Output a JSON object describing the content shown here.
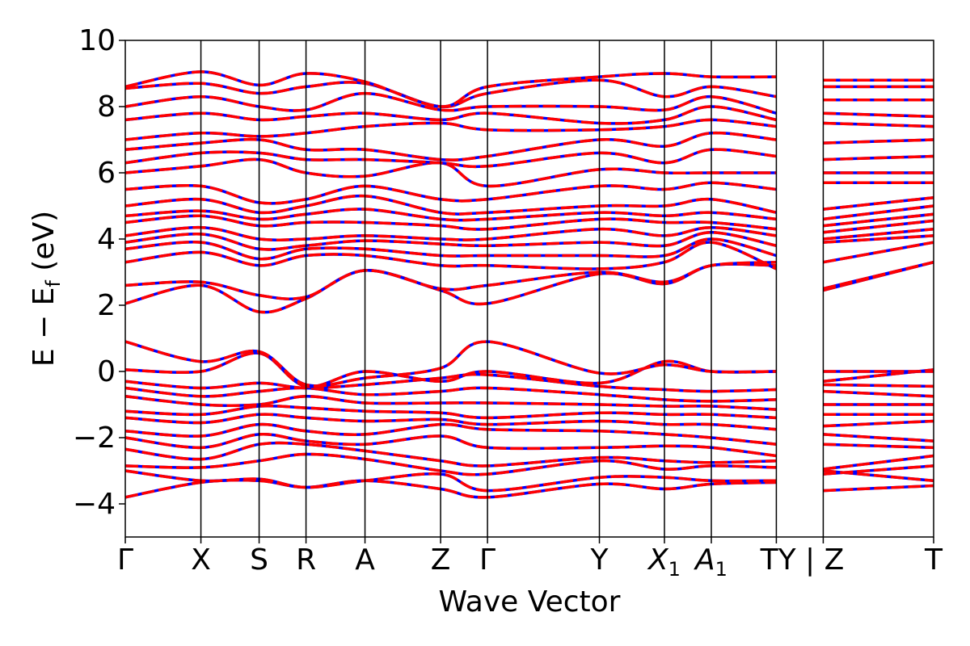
{
  "chart_data": {
    "type": "line",
    "xlabel": "Wave Vector",
    "ylabel": "E − E",
    "ylabel_sub": "f",
    "ylabel_unit": " (eV)",
    "ylim": [
      -5,
      10
    ],
    "yticks": [
      {
        "value": -4,
        "label": "−4"
      },
      {
        "value": -2,
        "label": "−2"
      },
      {
        "value": 0,
        "label": "0"
      },
      {
        "value": 2,
        "label": "2"
      },
      {
        "value": 4,
        "label": "4"
      },
      {
        "value": 6,
        "label": "6"
      },
      {
        "value": 8,
        "label": "8"
      },
      {
        "value": 10,
        "label": "10"
      }
    ],
    "kpoints": [
      {
        "pos": 0,
        "label": "Γ"
      },
      {
        "pos": 1,
        "label": "X"
      },
      {
        "pos": 1.77,
        "label": "S"
      },
      {
        "pos": 2.39,
        "label": "R"
      },
      {
        "pos": 3.17,
        "label": "A"
      },
      {
        "pos": 4.17,
        "label": "Z"
      },
      {
        "pos": 4.79,
        "label": "Γ"
      },
      {
        "pos": 6.27,
        "label": "Y"
      },
      {
        "pos": 7.13,
        "label": "X",
        "sub": "1"
      },
      {
        "pos": 7.75,
        "label": "A",
        "sub": "1"
      },
      {
        "pos": 8.61,
        "label": "TY | Z"
      },
      {
        "pos": 9.23,
        "label": ""
      },
      {
        "pos": 10.69,
        "label": "T"
      }
    ],
    "segment_break": 9.23,
    "series_colors": {
      "solid": "#ff0000",
      "dashed": "#0000ff"
    },
    "bands": [
      [
        -3.8,
        -3.35,
        -3.3,
        -3.5,
        -3.3,
        -3.55,
        -3.8,
        -3.4,
        -3.55,
        -3.4,
        -3.35,
        -3.6,
        -3.45
      ],
      [
        -3.0,
        -3.3,
        -3.25,
        -3.5,
        -3.3,
        -3.1,
        -3.6,
        -3.2,
        -3.2,
        -3.3,
        -3.3,
        -3.0,
        -3.3
      ],
      [
        -2.85,
        -2.9,
        -2.7,
        -2.5,
        -2.65,
        -3.0,
        -3.1,
        -2.7,
        -2.95,
        -2.85,
        -2.9,
        -3.1,
        -2.85
      ],
      [
        -2.35,
        -2.65,
        -2.2,
        -2.2,
        -2.4,
        -2.7,
        -2.85,
        -2.6,
        -2.7,
        -2.75,
        -2.7,
        -2.95,
        -2.55
      ],
      [
        -2.0,
        -2.3,
        -1.9,
        -2.1,
        -2.2,
        -1.95,
        -2.3,
        -2.3,
        -2.25,
        -2.3,
        -2.55,
        -2.2,
        -2.3
      ],
      [
        -1.8,
        -1.95,
        -1.6,
        -1.8,
        -1.9,
        -1.6,
        -1.75,
        -1.8,
        -1.9,
        -2.0,
        -2.2,
        -1.9,
        -2.1
      ],
      [
        -1.4,
        -1.55,
        -1.3,
        -1.4,
        -1.5,
        -1.45,
        -1.6,
        -1.5,
        -1.6,
        -1.6,
        -1.75,
        -1.65,
        -1.5
      ],
      [
        -1.2,
        -1.3,
        -1.05,
        -1.1,
        -1.2,
        -1.25,
        -1.4,
        -1.25,
        -1.3,
        -1.3,
        -1.4,
        -1.3,
        -1.3
      ],
      [
        -0.75,
        -1.0,
        -1.0,
        -0.75,
        -0.95,
        -0.95,
        -0.95,
        -1.0,
        -1.05,
        -1.05,
        -1.15,
        -1.0,
        -1.0
      ],
      [
        -0.5,
        -0.75,
        -0.6,
        -0.5,
        -0.7,
        -0.6,
        -0.5,
        -0.7,
        -0.85,
        -0.9,
        -0.85,
        -0.6,
        -0.75
      ],
      [
        -0.3,
        -0.5,
        -0.35,
        -0.5,
        -0.4,
        -0.2,
        -0.1,
        -0.45,
        -0.55,
        -0.6,
        -0.55,
        -0.4,
        -0.45
      ],
      [
        0.05,
        0.0,
        0.55,
        -0.45,
        0.0,
        -0.3,
        0.0,
        -0.35,
        0.3,
        0.0,
        0.0,
        -0.3,
        0.05
      ],
      [
        0.9,
        0.3,
        0.6,
        -0.4,
        -0.2,
        0.1,
        0.9,
        -0.05,
        0.2,
        0.0,
        0.0,
        0.0,
        0.0
      ],
      [
        2.05,
        2.6,
        1.8,
        2.2,
        3.05,
        2.45,
        2.05,
        2.95,
        2.65,
        3.2,
        3.2,
        2.45,
        3.3
      ],
      [
        2.6,
        2.7,
        2.3,
        2.25,
        3.05,
        2.5,
        2.6,
        3.0,
        2.7,
        3.2,
        3.3,
        2.5,
        3.3
      ],
      [
        3.3,
        3.6,
        3.2,
        3.5,
        3.5,
        3.2,
        3.2,
        3.1,
        3.3,
        3.9,
        3.1,
        3.3,
        3.9
      ],
      [
        3.7,
        3.9,
        3.4,
        3.7,
        3.7,
        3.5,
        3.5,
        3.5,
        3.5,
        4.0,
        3.5,
        3.9,
        4.1
      ],
      [
        3.9,
        4.15,
        3.7,
        3.8,
        3.95,
        3.85,
        3.8,
        3.9,
        3.8,
        4.2,
        3.8,
        4.0,
        4.3
      ],
      [
        4.1,
        4.35,
        4.0,
        4.0,
        4.1,
        4.0,
        4.0,
        4.3,
        4.1,
        4.35,
        4.1,
        4.2,
        4.55
      ],
      [
        4.5,
        4.7,
        4.4,
        4.5,
        4.5,
        4.4,
        4.3,
        4.6,
        4.5,
        4.5,
        4.3,
        4.4,
        4.75
      ],
      [
        4.7,
        4.85,
        4.6,
        4.75,
        4.9,
        4.6,
        4.6,
        4.8,
        4.7,
        4.8,
        4.6,
        4.6,
        5.0
      ],
      [
        5.0,
        5.2,
        4.8,
        5.0,
        5.3,
        4.8,
        4.8,
        5.0,
        5.0,
        5.2,
        4.8,
        4.9,
        5.25
      ],
      [
        5.5,
        5.6,
        5.1,
        5.2,
        5.6,
        5.2,
        5.2,
        5.6,
        5.5,
        5.7,
        5.5,
        5.7,
        5.7
      ],
      [
        6.0,
        6.2,
        6.4,
        6.0,
        5.9,
        6.3,
        5.6,
        6.1,
        6.0,
        6.0,
        6.0,
        6.0,
        6.0
      ],
      [
        6.3,
        6.6,
        6.6,
        6.4,
        6.4,
        6.3,
        6.2,
        6.6,
        6.3,
        6.7,
        6.5,
        6.4,
        6.5
      ],
      [
        6.7,
        6.9,
        7.0,
        6.7,
        6.7,
        6.4,
        6.5,
        7.0,
        6.8,
        7.2,
        7.0,
        6.9,
        7.0
      ],
      [
        7.0,
        7.2,
        7.1,
        7.2,
        7.4,
        7.5,
        7.3,
        7.3,
        7.4,
        7.6,
        7.4,
        7.5,
        7.4
      ],
      [
        7.6,
        7.8,
        7.6,
        7.7,
        7.8,
        7.6,
        7.8,
        7.5,
        7.6,
        8.0,
        7.6,
        7.8,
        7.7
      ],
      [
        8.0,
        8.3,
        8.0,
        7.9,
        8.4,
        7.9,
        8.0,
        8.0,
        7.9,
        8.3,
        7.8,
        8.2,
        8.2
      ],
      [
        8.55,
        8.7,
        8.4,
        8.6,
        8.7,
        8.0,
        8.4,
        8.8,
        8.3,
        8.6,
        8.3,
        8.6,
        8.6
      ],
      [
        8.6,
        9.05,
        8.65,
        9.0,
        8.75,
        8.0,
        8.6,
        8.9,
        9.0,
        8.9,
        8.9,
        8.8,
        8.8
      ]
    ]
  }
}
